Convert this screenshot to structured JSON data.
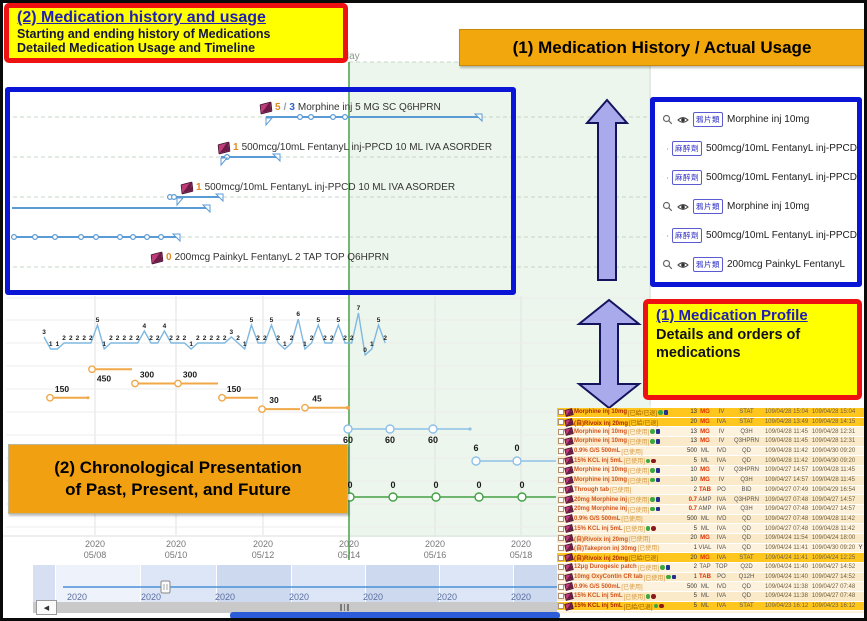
{
  "annotations": {
    "history_box": {
      "title": "(2) Medication history and usage",
      "line1": "Starting and ending history of Medications",
      "line2": "Detailed Medication Usage and Timeline"
    },
    "usage_banner": "(1) Medication History / Actual Usage",
    "profile_box": {
      "title": "(1) Medication Profile",
      "line1": "Details and orders of",
      "line2": "medications"
    },
    "chrono_box": {
      "line1": "(2) Chronological Presentation",
      "line2": "of Past, Present, and Future"
    }
  },
  "today_label": "Today",
  "icons": {
    "scroll_left": "◀"
  },
  "timeline_panel": {
    "entries": [
      {
        "count": "5/3",
        "label": "Morphine inj 5 MG SC Q6HPRN"
      },
      {
        "count": "1",
        "label": "500mcg/10mL FentanyL inj-PPCD 10 ML IVA ASORDER"
      },
      {
        "count": "1",
        "label": "500mcg/10mL FentanyL inj-PPCD 10 ML IVA ASORDER"
      },
      {
        "count": "0",
        "label": "200mcg PainkyL FentanyL 2 TAP TOP Q6HPRN"
      }
    ]
  },
  "actual_usage_panel": {
    "rows": [
      {
        "category": "鴉片類",
        "name": "Morphine inj 10mg"
      },
      {
        "category": "麻醉劑",
        "name": "500mcg/10mL FentanyL inj-PPCD"
      },
      {
        "category": "麻醉劑",
        "name": "500mcg/10mL FentanyL inj-PPCD"
      },
      {
        "category": "鴉片類",
        "name": "Morphine inj 10mg"
      },
      {
        "category": "麻醉劑",
        "name": "500mcg/10mL FentanyL inj-PPCD"
      },
      {
        "category": "鴉片類",
        "name": "200mcg PainkyL FentanyL"
      }
    ]
  },
  "orders_table": {
    "rows": [
      {
        "name": "Morphine inj 10mg",
        "tag": "[已給/已退]",
        "badges": "gb",
        "qty": "13",
        "unit": "MG",
        "ur": true,
        "route": "IV",
        "freq": "STAT",
        "start": "109/04/28 15:04",
        "end": "109/04/28 15:04",
        "hl": true,
        "flag": ""
      },
      {
        "name": "(自)Rivoix inj 20mg",
        "tag": "[已給/已退]",
        "badges": "",
        "qty": "20",
        "unit": "MG",
        "ur": true,
        "route": "IVA",
        "freq": "STAT",
        "start": "109/04/28 13:49",
        "end": "109/04/28 14:15",
        "hl": true,
        "flag": ""
      },
      {
        "name": "Morphine inj 10mg",
        "tag": "[已使用]",
        "badges": "gb",
        "qty": "13",
        "unit": "MG",
        "ur": true,
        "route": "IV",
        "freq": "Q3H",
        "start": "109/04/28 11:45",
        "end": "109/04/28 12:31",
        "hl": false,
        "flag": ""
      },
      {
        "name": "Morphine inj 10mg",
        "tag": "[已使用]",
        "badges": "gb",
        "qty": "13",
        "unit": "MG",
        "ur": true,
        "route": "IV",
        "freq": "Q3HPRN",
        "start": "109/04/28 11:45",
        "end": "109/04/28 12:31",
        "hl": false,
        "flag": ""
      },
      {
        "name": "0.9% G/S 500mL",
        "tag": "[已使用]",
        "badges": "",
        "qty": "500",
        "unit": "ML",
        "ur": false,
        "route": "IVD",
        "freq": "QD",
        "start": "109/04/28 11:42",
        "end": "109/04/30 09:20",
        "hl": false,
        "flag": ""
      },
      {
        "name": "15% KCL inj 5mL",
        "tag": "[已使用]",
        "badges": "gr",
        "qty": "5",
        "unit": "ML",
        "ur": false,
        "route": "IVA",
        "freq": "QD",
        "start": "109/04/28 11:42",
        "end": "109/04/30 09:20",
        "hl": false,
        "flag": ""
      },
      {
        "name": "Morphine inj 10mg",
        "tag": "[已使用]",
        "badges": "gb",
        "qty": "10",
        "unit": "MG",
        "ur": true,
        "route": "IV",
        "freq": "Q3HPRN",
        "start": "109/04/27 14:57",
        "end": "109/04/28 11:45",
        "hl": false,
        "flag": ""
      },
      {
        "name": "Morphine inj 10mg",
        "tag": "[已使用]",
        "badges": "gb",
        "qty": "10",
        "unit": "MG",
        "ur": true,
        "route": "IV",
        "freq": "Q3H",
        "start": "109/04/27 14:57",
        "end": "109/04/28 11:45",
        "hl": false,
        "flag": ""
      },
      {
        "name": "Through tab",
        "tag": "[已使用]",
        "badges": "",
        "qty": "2",
        "unit": "TAB",
        "ur": true,
        "route": "PO",
        "freq": "BID",
        "start": "109/04/27 07:49",
        "end": "109/04/29 16:54",
        "hl": false,
        "flag": ""
      },
      {
        "name": "20mg Morphine inj",
        "tag": "[已使用]",
        "badges": "gb",
        "qty": "0.7",
        "qr": true,
        "unit": "AMP",
        "ur": false,
        "route": "IVA",
        "freq": "Q3HPRN",
        "start": "109/04/27 07:48",
        "end": "109/04/27 14:57",
        "hl": false,
        "flag": ""
      },
      {
        "name": "20mg Morphine inj",
        "tag": "[已使用]",
        "badges": "gb",
        "qty": "0.7",
        "qr": true,
        "unit": "AMP",
        "ur": false,
        "route": "IVA",
        "freq": "Q3H",
        "start": "109/04/27 07:48",
        "end": "109/04/27 14:57",
        "hl": false,
        "flag": ""
      },
      {
        "name": "0.9% G/S 500mL",
        "tag": "[已使用]",
        "badges": "",
        "qty": "500",
        "unit": "ML",
        "ur": false,
        "route": "IVD",
        "freq": "QD",
        "start": "109/04/27 07:48",
        "end": "109/04/28 11:42",
        "hl": false,
        "flag": ""
      },
      {
        "name": "15% KCL inj 5mL",
        "tag": "[已使用]",
        "badges": "gr",
        "qty": "5",
        "unit": "ML",
        "ur": false,
        "route": "IVA",
        "freq": "QD",
        "start": "109/04/27 07:48",
        "end": "109/04/28 11:42",
        "hl": false,
        "flag": ""
      },
      {
        "name": "(自)Rivoix inj 20mg",
        "tag": "[已使用]",
        "badges": "",
        "qty": "20",
        "unit": "MG",
        "ur": true,
        "route": "IVA",
        "freq": "QD",
        "start": "109/04/24 11:54",
        "end": "109/04/24 18:00",
        "hl": false,
        "flag": ""
      },
      {
        "name": "(自)Takepron inj 30mg",
        "tag": "[已使用]",
        "badges": "",
        "qty": "1",
        "unit": "VIAL",
        "ur": false,
        "route": "IVA",
        "freq": "QD",
        "start": "109/04/24 11:41",
        "end": "109/04/30 09:20",
        "hl": false,
        "flag": "Y"
      },
      {
        "name": "(自)Rivoix inj 20mg",
        "tag": "[已給/已退]",
        "badges": "",
        "qty": "20",
        "unit": "MG",
        "ur": true,
        "route": "IVA",
        "freq": "STAT",
        "start": "109/04/24 11:41",
        "end": "109/04/24 12:25",
        "hl": true,
        "flag": ""
      },
      {
        "name": "12μg Durogesic patch",
        "tag": "[已使用]",
        "badges": "gb",
        "qty": "2",
        "unit": "TAP",
        "ur": false,
        "route": "TOP",
        "freq": "Q2D",
        "start": "109/04/24 11:40",
        "end": "109/04/27 14:52",
        "hl": false,
        "flag": ""
      },
      {
        "name": "10mg OxyContin CR tab",
        "tag": "[已使用]",
        "badges": "gb",
        "qty": "1",
        "unit": "TAB",
        "ur": true,
        "route": "PO",
        "freq": "Q12H",
        "start": "109/04/24 11:40",
        "end": "109/04/27 14:52",
        "hl": false,
        "flag": ""
      },
      {
        "name": "0.9% G/S 500mL",
        "tag": "[已使用]",
        "badges": "",
        "qty": "500",
        "unit": "ML",
        "ur": false,
        "route": "IVD",
        "freq": "QD",
        "start": "109/04/24 11:38",
        "end": "109/04/27 07:48",
        "hl": false,
        "flag": ""
      },
      {
        "name": "15% KCL inj 5mL",
        "tag": "[已使用]",
        "badges": "gr",
        "qty": "5",
        "unit": "ML",
        "ur": false,
        "route": "IVA",
        "freq": "QD",
        "start": "109/04/24 11:38",
        "end": "109/04/27 07:48",
        "hl": false,
        "flag": ""
      },
      {
        "name": "15% KCL inj 5mL",
        "tag": "[已給/已退]",
        "badges": "gr",
        "qty": "5",
        "unit": "ML",
        "ur": false,
        "route": "IVA",
        "freq": "STAT",
        "start": "109/04/23 16:12",
        "end": "109/04/23 16:12",
        "hl": true,
        "flag": ""
      }
    ]
  },
  "axis": {
    "year": "2020",
    "main_dates": [
      "05/08",
      "05/10",
      "05/12",
      "05/14",
      "05/16",
      "05/18"
    ],
    "mini_dates": [
      "05/06",
      "05/08",
      "05/10",
      "05/12",
      "05/14",
      "05/16",
      "05/18"
    ]
  },
  "colors": {
    "panel_blue": "#0b15d6",
    "callout_red": "#ee1111",
    "callout_yellow": "#ffff00",
    "banner_orange": "#f2a70d",
    "today_green": "#57a757",
    "timeline_blue": "#5b9bd5",
    "dose_orange": "#f0a848",
    "zero_green": "#44a044",
    "highlight_gold": "#ffc61e"
  },
  "chart_data": [
    {
      "type": "line",
      "name": "pain-score-timeline",
      "ylim": [
        0,
        10
      ],
      "values": [
        3,
        1,
        1,
        2,
        2,
        2,
        2,
        2,
        5,
        1,
        2,
        2,
        2,
        2,
        2,
        4,
        2,
        2,
        4,
        2,
        2,
        2,
        1,
        2,
        2,
        2,
        2,
        2,
        3,
        2,
        1,
        5,
        2,
        2,
        5,
        2,
        1,
        2,
        6,
        1,
        2,
        5,
        2,
        2,
        5,
        2,
        2,
        7,
        0,
        1,
        5,
        2
      ]
    },
    {
      "type": "step",
      "name": "dose-amount",
      "values": [
        150,
        450,
        300,
        300,
        150,
        30,
        45
      ]
    },
    {
      "type": "step",
      "name": "future-remaining",
      "values": [
        60,
        60,
        60,
        6,
        0
      ]
    },
    {
      "type": "line",
      "name": "future-count",
      "values": [
        0,
        0,
        0,
        0,
        0
      ]
    }
  ]
}
